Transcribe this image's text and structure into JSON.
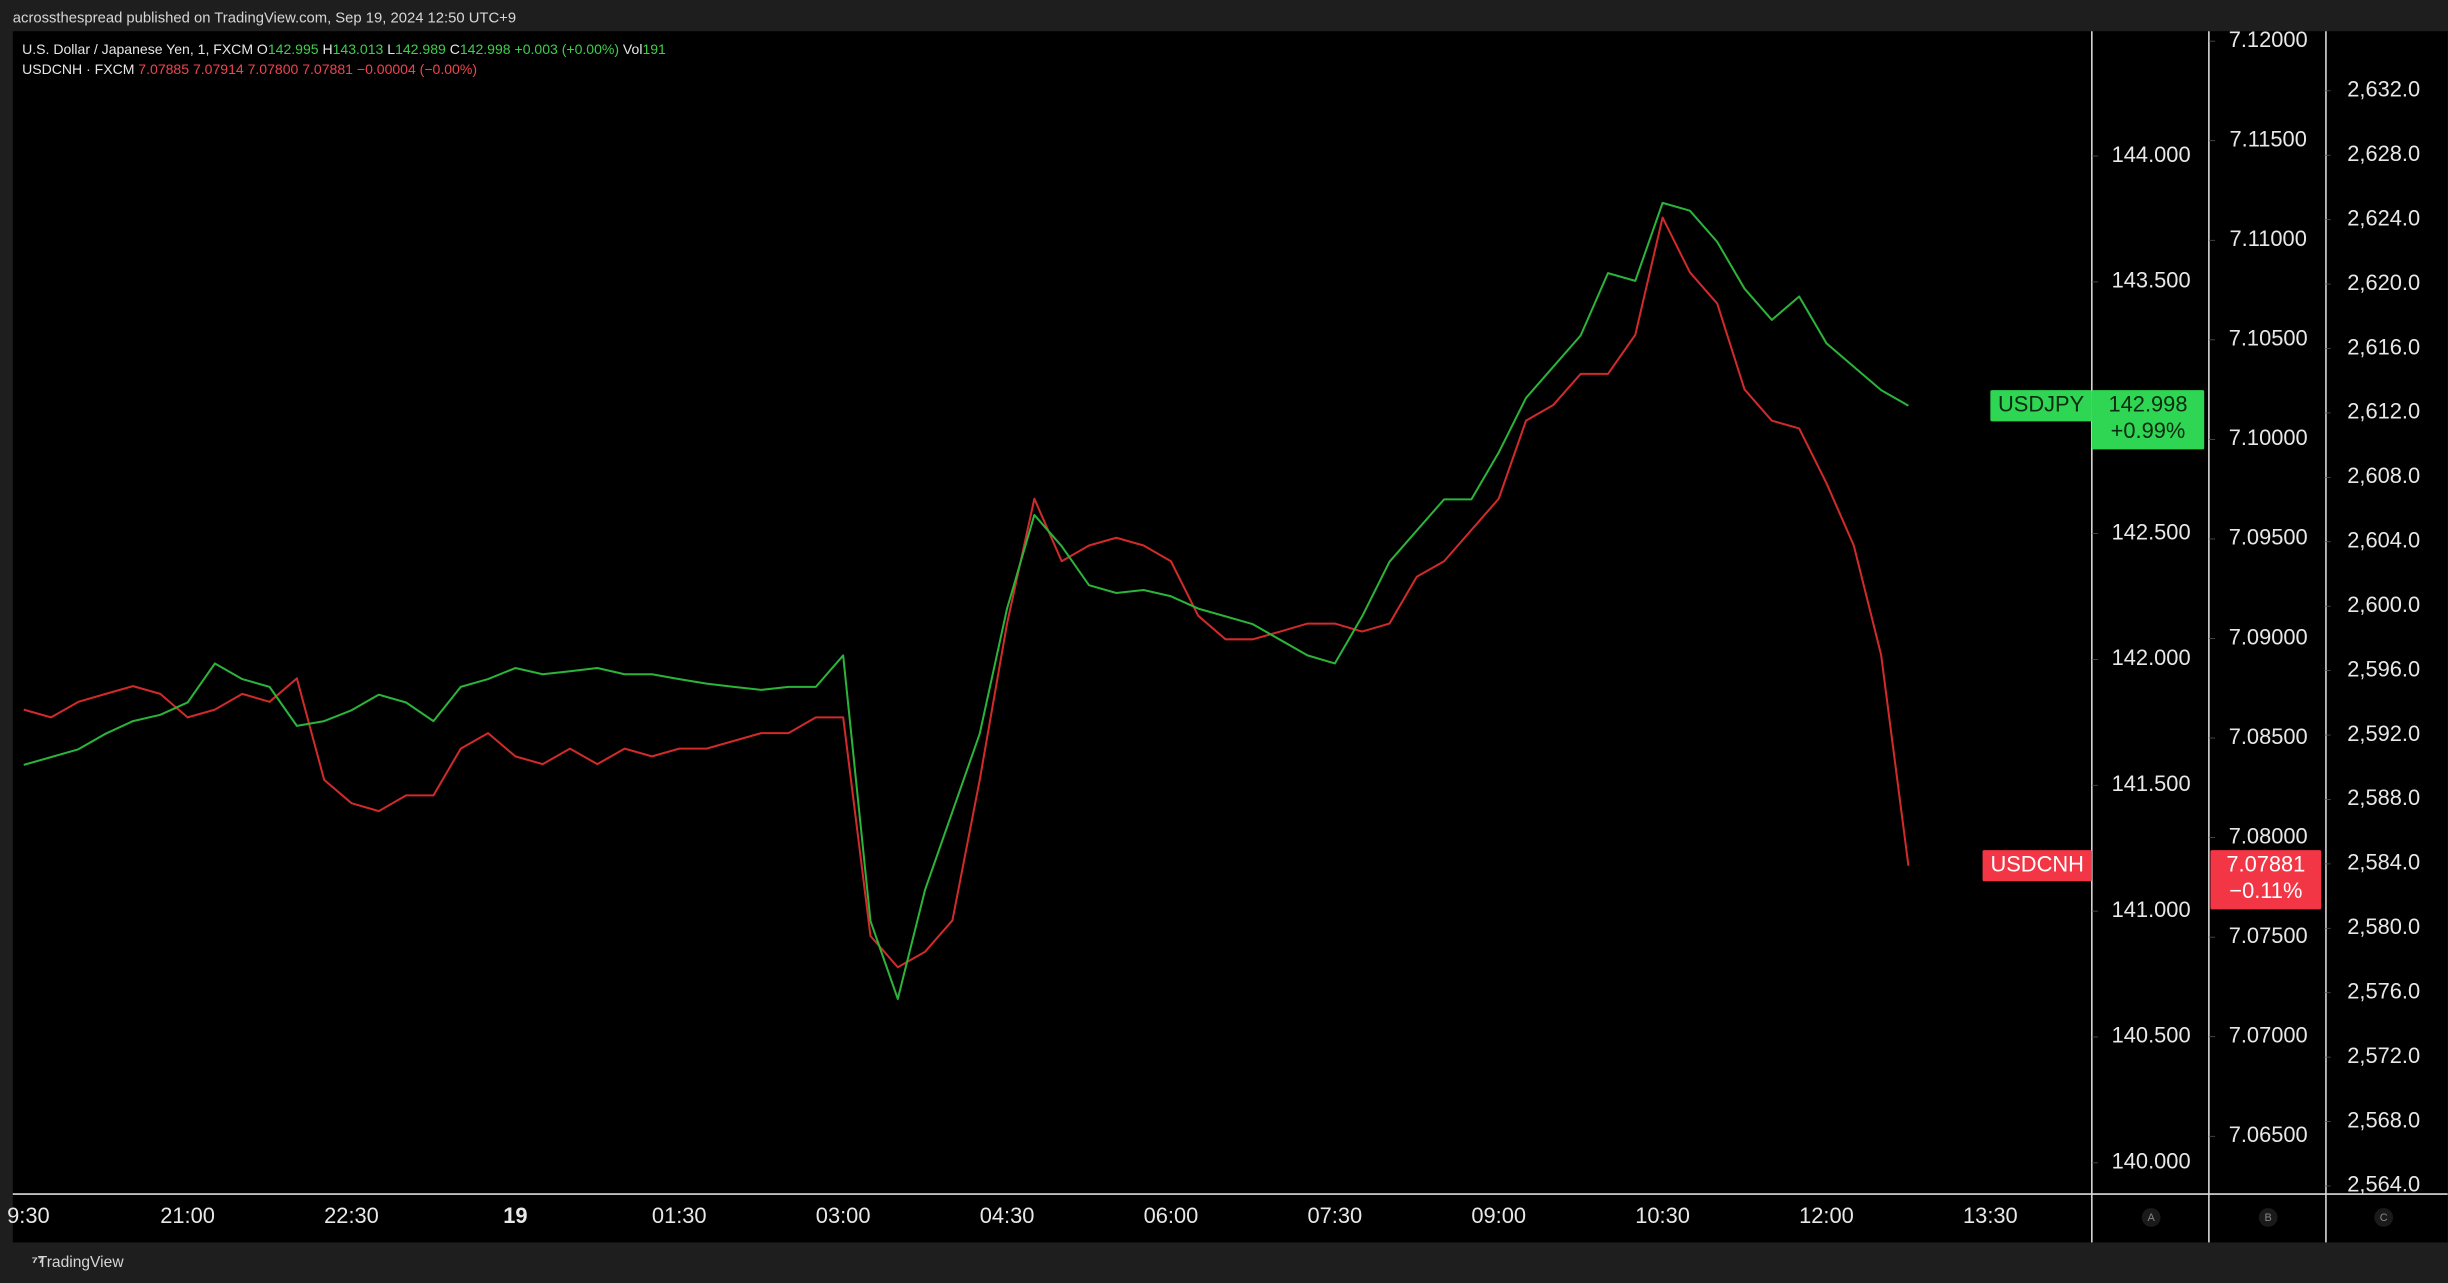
{
  "header": "acrossthespread published on TradingView.com, Sep 19, 2024 12:50 UTC+9",
  "legend": {
    "line1": {
      "name": "U.S. Dollar / Japanese Yen, 1, FXCM",
      "items": [
        {
          "label": "O",
          "value": "142.995"
        },
        {
          "label": "H",
          "value": "143.013"
        },
        {
          "label": "L",
          "value": "142.989"
        },
        {
          "label": "C",
          "value": "142.998"
        },
        {
          "label": "",
          "value": "+0.003 (+0.00%)"
        },
        {
          "label": "Vol",
          "value": "191"
        }
      ]
    },
    "line2": {
      "name": "USDCNH · FXCM",
      "items": [
        "7.07885",
        "7.07914",
        "7.07800",
        "7.07881",
        "−0.00004 (−0.00%)"
      ]
    }
  },
  "price_tags": {
    "jpy": {
      "name": "USDJPY",
      "price": "142.998",
      "change": "+0.99%"
    },
    "cnh": {
      "name": "USDCNH",
      "price": "7.07881",
      "change": "−0.11%"
    }
  },
  "scale_letters": [
    "A",
    "B",
    "C"
  ],
  "footer": "TradingView",
  "chart_data": {
    "type": "line",
    "categories": [
      "9:30",
      null,
      null,
      null,
      null,
      null,
      "21:00",
      null,
      null,
      null,
      null,
      null,
      "22:30",
      null,
      null,
      null,
      null,
      null,
      "19",
      null,
      null,
      null,
      null,
      null,
      "01:30",
      null,
      null,
      null,
      null,
      null,
      "03:00",
      null,
      null,
      null,
      null,
      null,
      "04:30",
      null,
      null,
      null,
      null,
      null,
      "06:00",
      null,
      null,
      null,
      null,
      null,
      "07:30",
      null,
      null,
      null,
      null,
      null,
      "09:00",
      null,
      null,
      null,
      null,
      null,
      "10:30",
      null,
      null,
      null,
      null,
      null,
      "12:00",
      null,
      null,
      null,
      null,
      null,
      "13:30"
    ],
    "series": [
      {
        "name": "USDCNH",
        "color": "#d12a2a",
        "axis": "y2",
        "values": [
          7.08643,
          7.08604,
          7.08682,
          7.08722,
          7.08761,
          7.08722,
          7.08604,
          7.08643,
          7.08722,
          7.08682,
          7.088,
          7.0829,
          7.08173,
          7.08133,
          7.08212,
          7.08212,
          7.08447,
          7.08525,
          7.08408,
          7.08369,
          7.08447,
          7.08369,
          7.08447,
          7.08408,
          7.08447,
          7.08447,
          7.08486,
          7.08525,
          7.08525,
          7.08604,
          7.08604,
          7.07506,
          7.07349,
          7.07427,
          7.07584,
          7.0829,
          7.09075,
          7.09702,
          7.09388,
          7.09467,
          7.09506,
          7.09467,
          7.09388,
          7.09114,
          7.08996,
          7.08996,
          7.09035,
          7.09075,
          7.09075,
          7.09035,
          7.09075,
          7.0931,
          7.09388,
          7.09545,
          7.09702,
          7.10094,
          7.10173,
          7.10329,
          7.10329,
          7.10525,
          7.11114,
          7.10839,
          7.10682,
          7.10251,
          7.10094,
          7.10055,
          7.0978,
          7.09467,
          7.08918,
          7.07859,
          null,
          null,
          null
        ]
      },
      {
        "name": "USDJPY",
        "color": "#2bb33a",
        "axis": "y",
        "values": [
          141.581,
          141.612,
          141.643,
          141.705,
          141.755,
          141.78,
          141.829,
          141.984,
          141.922,
          141.891,
          141.736,
          141.755,
          141.798,
          141.86,
          141.829,
          141.755,
          141.891,
          141.922,
          141.966,
          141.941,
          141.953,
          141.966,
          141.941,
          141.941,
          141.922,
          141.904,
          141.891,
          141.879,
          141.891,
          141.891,
          142.016,
          140.961,
          140.651,
          141.085,
          141.395,
          141.705,
          142.202,
          142.574,
          142.45,
          142.295,
          142.264,
          142.276,
          142.251,
          142.202,
          142.171,
          142.14,
          142.078,
          142.016,
          141.984,
          142.171,
          142.388,
          142.512,
          142.636,
          142.636,
          142.822,
          143.039,
          143.163,
          143.287,
          143.535,
          143.504,
          143.814,
          143.783,
          143.659,
          143.473,
          143.349,
          143.442,
          143.256,
          143.163,
          143.07,
          143.008,
          null,
          null,
          null
        ]
      }
    ],
    "ylim": [
      139.876,
      144.496
    ],
    "yticks": [
      {
        "value": 140,
        "label": "140.000"
      },
      {
        "value": 140.5,
        "label": "140.500"
      },
      {
        "value": 141,
        "label": "141.000"
      },
      {
        "value": 141.5,
        "label": "141.500"
      },
      {
        "value": 142,
        "label": "142.000"
      },
      {
        "value": 142.5,
        "label": "142.500"
      },
      {
        "value": 143,
        "label": "143.000"
      },
      {
        "value": 143.5,
        "label": "143.500"
      },
      {
        "value": 144,
        "label": "144.000"
      }
    ],
    "y2lim": [
      7.0621,
      7.1205
    ],
    "y2ticks": [
      {
        "value": 7.065,
        "label": "7.06500"
      },
      {
        "value": 7.07,
        "label": "7.07000"
      },
      {
        "value": 7.075,
        "label": "7.07500"
      },
      {
        "value": 7.08,
        "label": "7.08000"
      },
      {
        "value": 7.085,
        "label": "7.08500"
      },
      {
        "value": 7.09,
        "label": "7.09000"
      },
      {
        "value": 7.095,
        "label": "7.09500"
      },
      {
        "value": 7.1,
        "label": "7.10000"
      },
      {
        "value": 7.105,
        "label": "7.10500"
      },
      {
        "value": 7.11,
        "label": "7.11000"
      },
      {
        "value": 7.115,
        "label": "7.11500"
      },
      {
        "value": 7.12,
        "label": "7.12000"
      }
    ],
    "y3lim": [
      2563.5,
      2635.7
    ],
    "y3ticks": [
      {
        "value": 2564,
        "label": "2,564.0"
      },
      {
        "value": 2568,
        "label": "2,568.0"
      },
      {
        "value": 2572,
        "label": "2,572.0"
      },
      {
        "value": 2576,
        "label": "2,576.0"
      },
      {
        "value": 2580,
        "label": "2,580.0"
      },
      {
        "value": 2584,
        "label": "2,584.0"
      },
      {
        "value": 2588,
        "label": "2,588.0"
      },
      {
        "value": 2592,
        "label": "2,592.0"
      },
      {
        "value": 2596,
        "label": "2,596.0"
      },
      {
        "value": 2600,
        "label": "2,600.0"
      },
      {
        "value": 2604,
        "label": "2,604.0"
      },
      {
        "value": 2608,
        "label": "2,608.0"
      },
      {
        "value": 2612,
        "label": "2,612.0"
      },
      {
        "value": 2616,
        "label": "2,616.0"
      },
      {
        "value": 2620,
        "label": "2,620.0"
      },
      {
        "value": 2624,
        "label": "2,624.0"
      },
      {
        "value": 2628,
        "label": "2,628.0"
      },
      {
        "value": 2632,
        "label": "2,632.0"
      }
    ]
  }
}
